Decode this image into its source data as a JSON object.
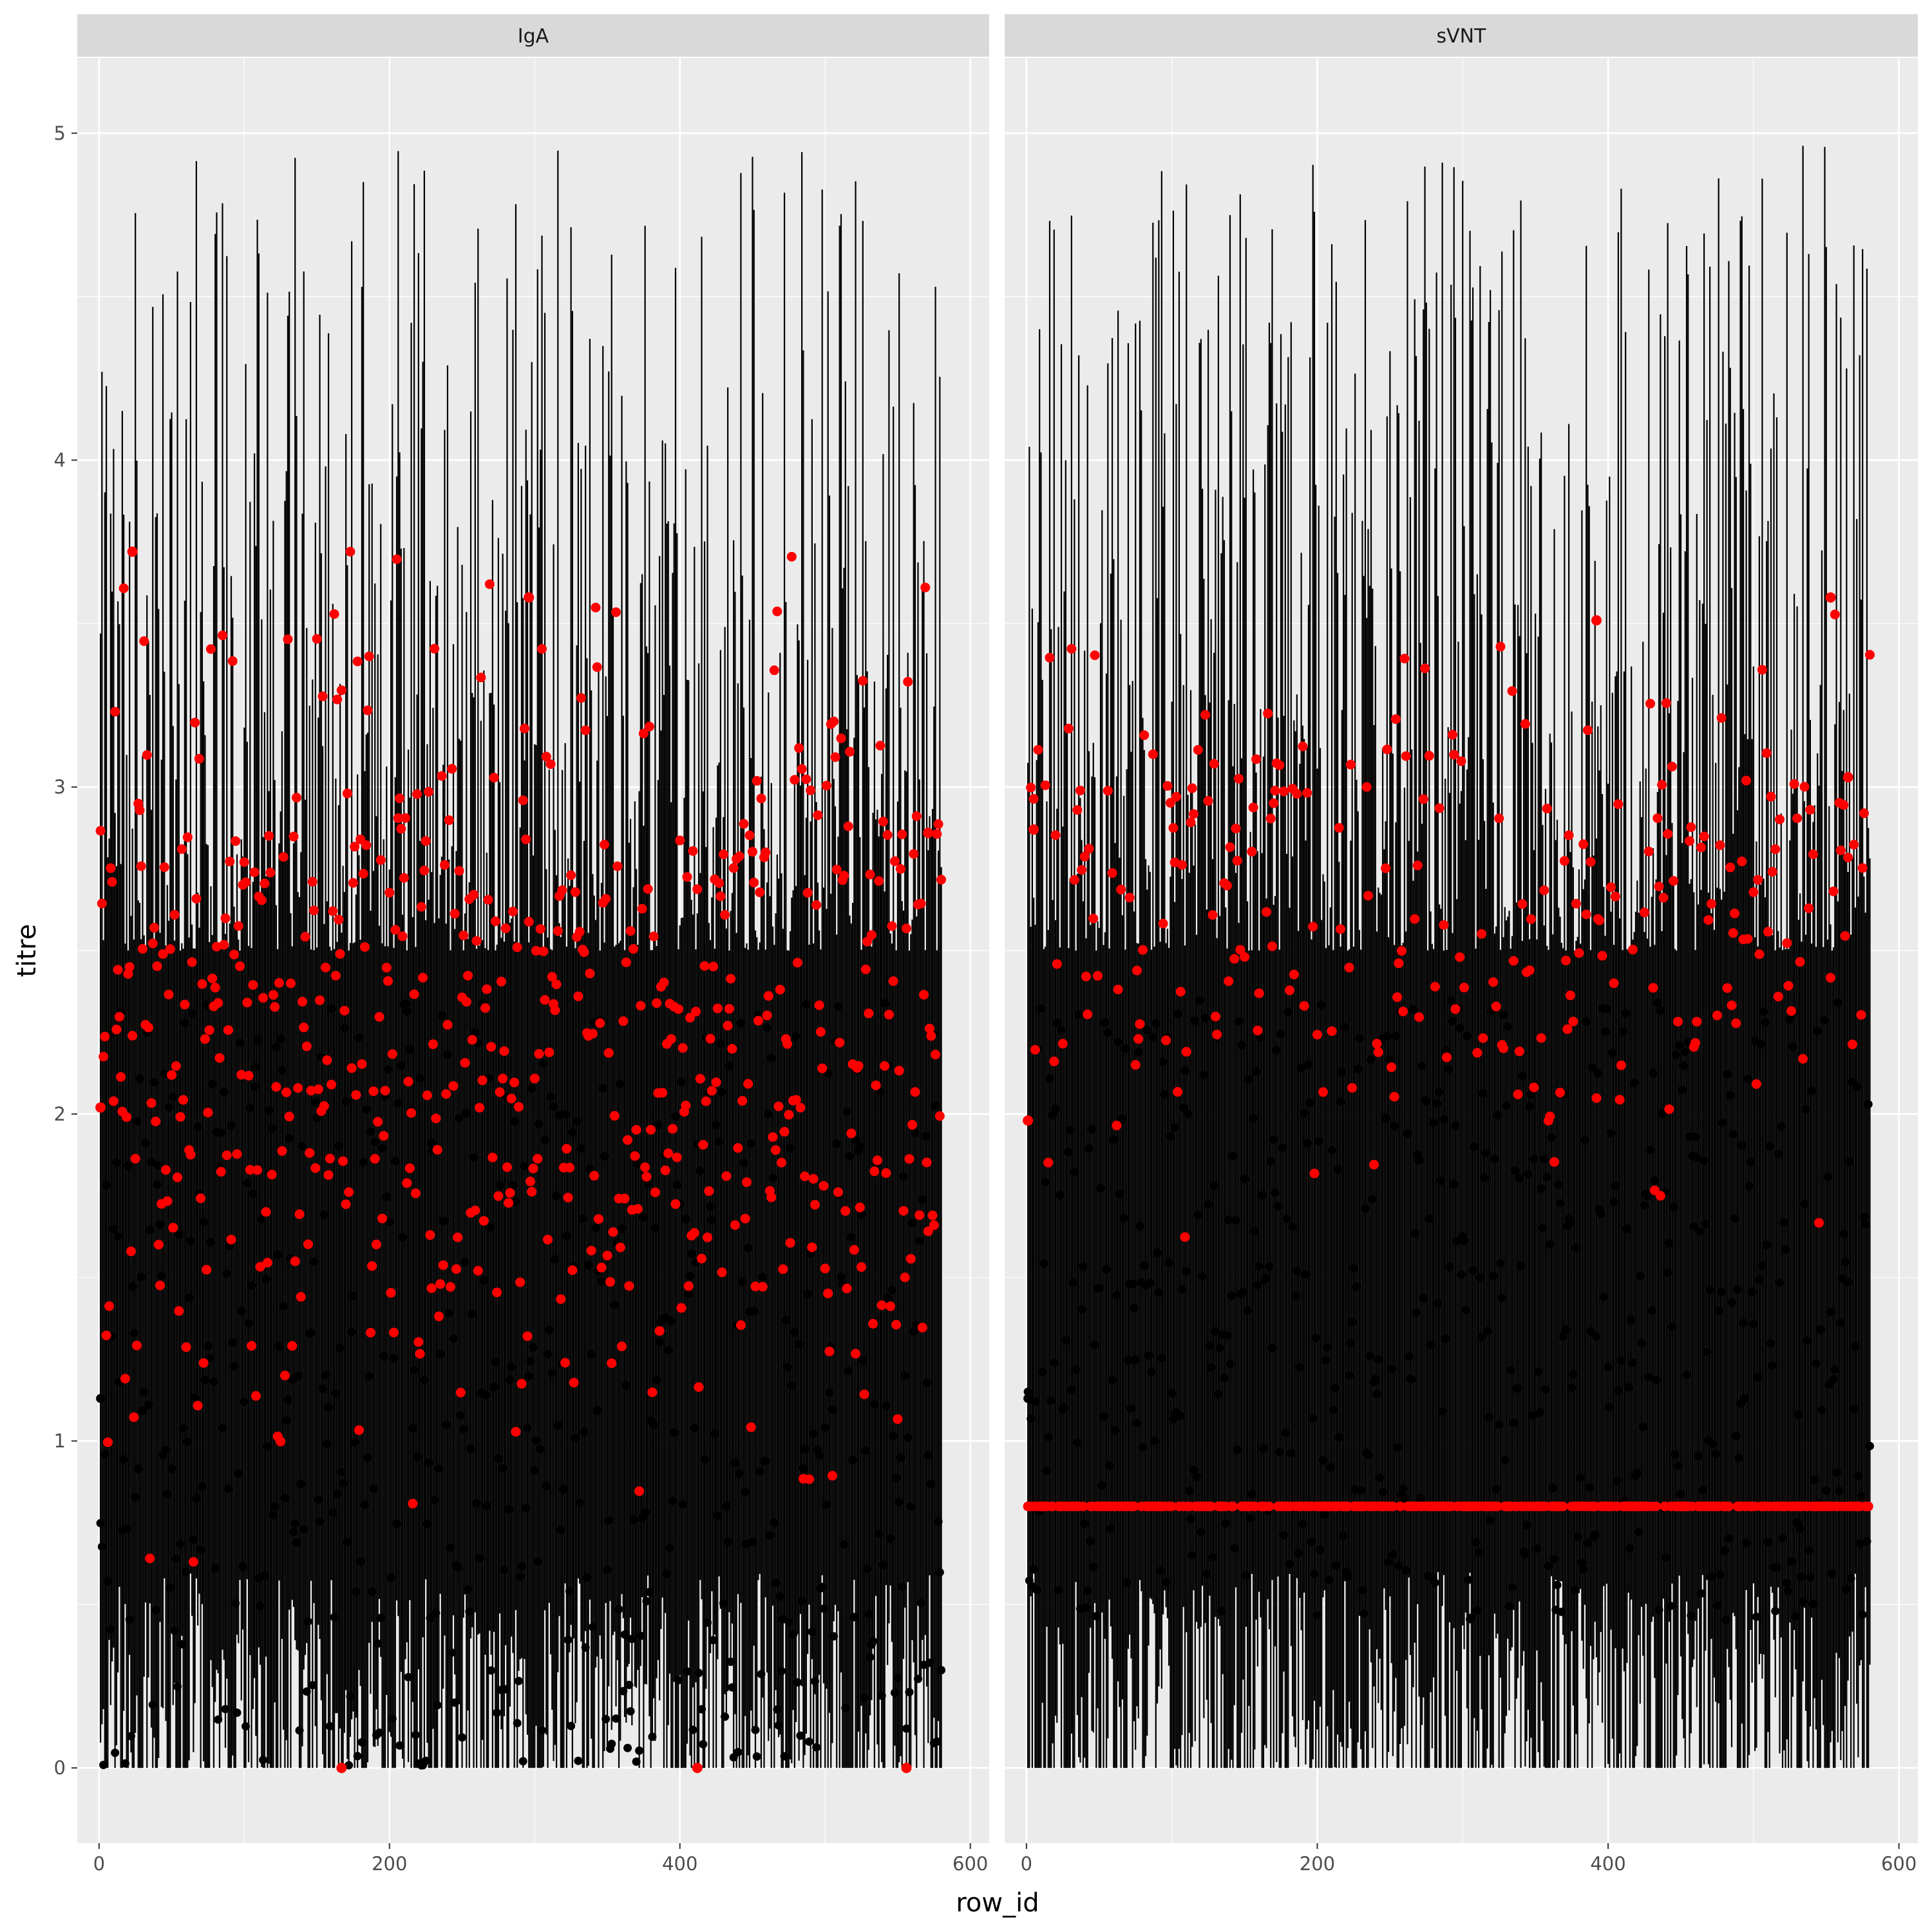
{
  "chart_data": {
    "type": "scatter",
    "description_note": "",
    "xlabel": "row_id",
    "ylabel": "titre",
    "xlim": [
      -15,
      613
    ],
    "ylim": [
      -0.23,
      5.23
    ],
    "x_ticks": [
      0,
      200,
      400,
      600
    ],
    "y_ticks": [
      0,
      1,
      2,
      3,
      4,
      5
    ],
    "grid": true,
    "legend": "none",
    "colors": {
      "panel_background": "#ebebeb",
      "grid_major": "#ffffff",
      "strip_background": "#d9d9d9",
      "lines": "#000000",
      "observed_points": "#000000",
      "fitted_points": "#ff0000"
    },
    "facets": [
      {
        "label": "IgA",
        "n_rows": 580,
        "error_bar_low": 0,
        "error_bar_high_range": [
          2.5,
          4.98
        ],
        "observed_range": [
          0.0,
          2.35
        ],
        "predicted_range": [
          0.0,
          3.72
        ],
        "sample_points": [
          {
            "x": 1,
            "y": 2.02,
            "series": "predicted"
          },
          {
            "x": 1,
            "y": 1.13,
            "series": "observed"
          },
          {
            "x": 23,
            "y": 3.72,
            "series": "predicted"
          },
          {
            "x": 167,
            "y": 0.0,
            "series": "predicted"
          },
          {
            "x": 296,
            "y": 3.58,
            "series": "predicted"
          },
          {
            "x": 412,
            "y": 0.0,
            "series": "predicted"
          },
          {
            "x": 556,
            "y": 0.0,
            "series": "predicted"
          },
          {
            "x": 571,
            "y": 2.86,
            "series": "predicted"
          }
        ]
      },
      {
        "label": "sVNT",
        "n_rows": 580,
        "error_bar_low": 0,
        "error_bar_high_range": [
          2.5,
          4.98
        ],
        "observed_range": [
          0.45,
          2.35
        ],
        "predicted_range": [
          0.8,
          3.58
        ],
        "censored_value": 0.8,
        "sample_points": [
          {
            "x": 1,
            "y": 1.98,
            "series": "predicted"
          },
          {
            "x": 1,
            "y": 1.13,
            "series": "observed"
          },
          {
            "x": 5,
            "y": 2.87,
            "series": "predicted"
          },
          {
            "x": 392,
            "y": 3.51,
            "series": "predicted"
          },
          {
            "x": 553,
            "y": 3.58,
            "series": "predicted"
          },
          {
            "x": 565,
            "y": 3.03,
            "series": "predicted"
          }
        ]
      }
    ]
  }
}
